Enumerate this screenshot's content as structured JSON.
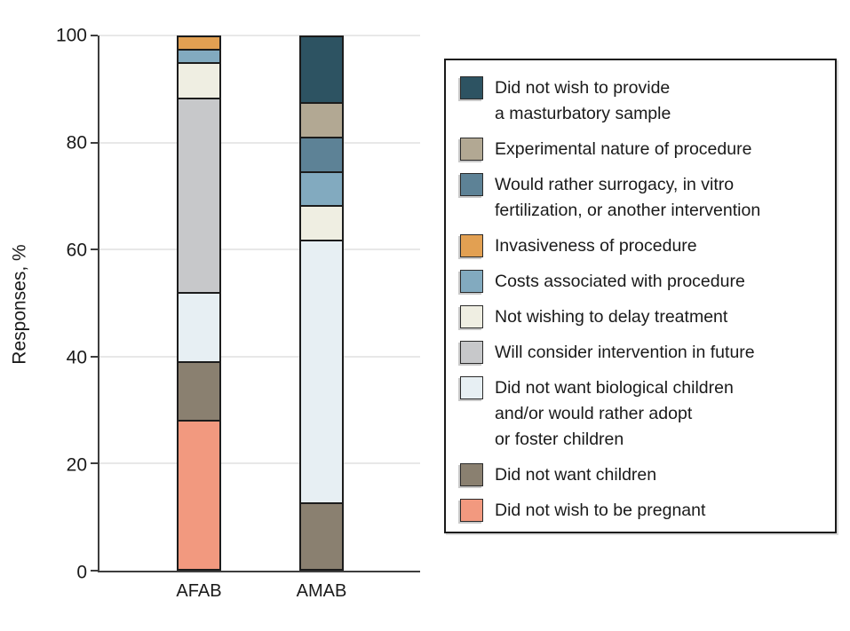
{
  "chart_data": {
    "type": "bar",
    "stacked": true,
    "orientation": "vertical",
    "title": "",
    "ylabel": "Responses, %",
    "xlabel": "",
    "ylim": [
      0,
      100
    ],
    "yticks": [
      0,
      20,
      40,
      60,
      80,
      100
    ],
    "yticklabels": [
      "0",
      "20",
      "40",
      "60",
      "80",
      "100"
    ],
    "grid": "horizontal",
    "legend_position": "right",
    "categories": [
      "AFAB",
      "AMAB"
    ],
    "series": [
      {
        "name": "Did not wish to provide a masturbatory sample",
        "lines": [
          "Did not wish to provide",
          "a masturbatory sample"
        ],
        "color": "#2d5362",
        "values": [
          0,
          12.5
        ]
      },
      {
        "name": "Experimental nature of procedure",
        "lines": [
          "Experimental nature of procedure"
        ],
        "color": "#b2a893",
        "values": [
          0,
          6.25
        ]
      },
      {
        "name": "Would rather surrogacy, in vitro fertilization, or another intervention",
        "lines": [
          "Would rather surrogacy, in vitro",
          "fertilization, or another intervention"
        ],
        "color": "#5d8296",
        "values": [
          0,
          6.25
        ]
      },
      {
        "name": "Invasiveness of procedure",
        "lines": [
          "Invasiveness of procedure"
        ],
        "color": "#e2a052",
        "values": [
          2.2,
          0
        ]
      },
      {
        "name": "Costs associated with procedure",
        "lines": [
          "Costs associated with procedure"
        ],
        "color": "#82aabf",
        "values": [
          2.2,
          6.25
        ]
      },
      {
        "name": "Not wishing to delay treatment",
        "lines": [
          "Not wishing to delay treatment"
        ],
        "color": "#efeee2",
        "values": [
          6.5,
          6.25
        ]
      },
      {
        "name": "Will consider intervention in future",
        "lines": [
          "Will consider intervention in future"
        ],
        "color": "#c7c8ca",
        "values": [
          37,
          0
        ]
      },
      {
        "name": "Did not want biological children and/or would rather adopt or foster children",
        "lines": [
          "Did not want biological children",
          "and/or would rather adopt",
          "or foster children"
        ],
        "color": "#e7eff3",
        "values": [
          13,
          50
        ]
      },
      {
        "name": "Did not want children",
        "lines": [
          "Did not want children"
        ],
        "color": "#8a8070",
        "values": [
          10.9,
          12.5
        ]
      },
      {
        "name": "Did not wish to be pregnant",
        "lines": [
          "Did not wish to be pregnant"
        ],
        "color": "#f2997f",
        "values": [
          28.3,
          0
        ]
      }
    ]
  }
}
